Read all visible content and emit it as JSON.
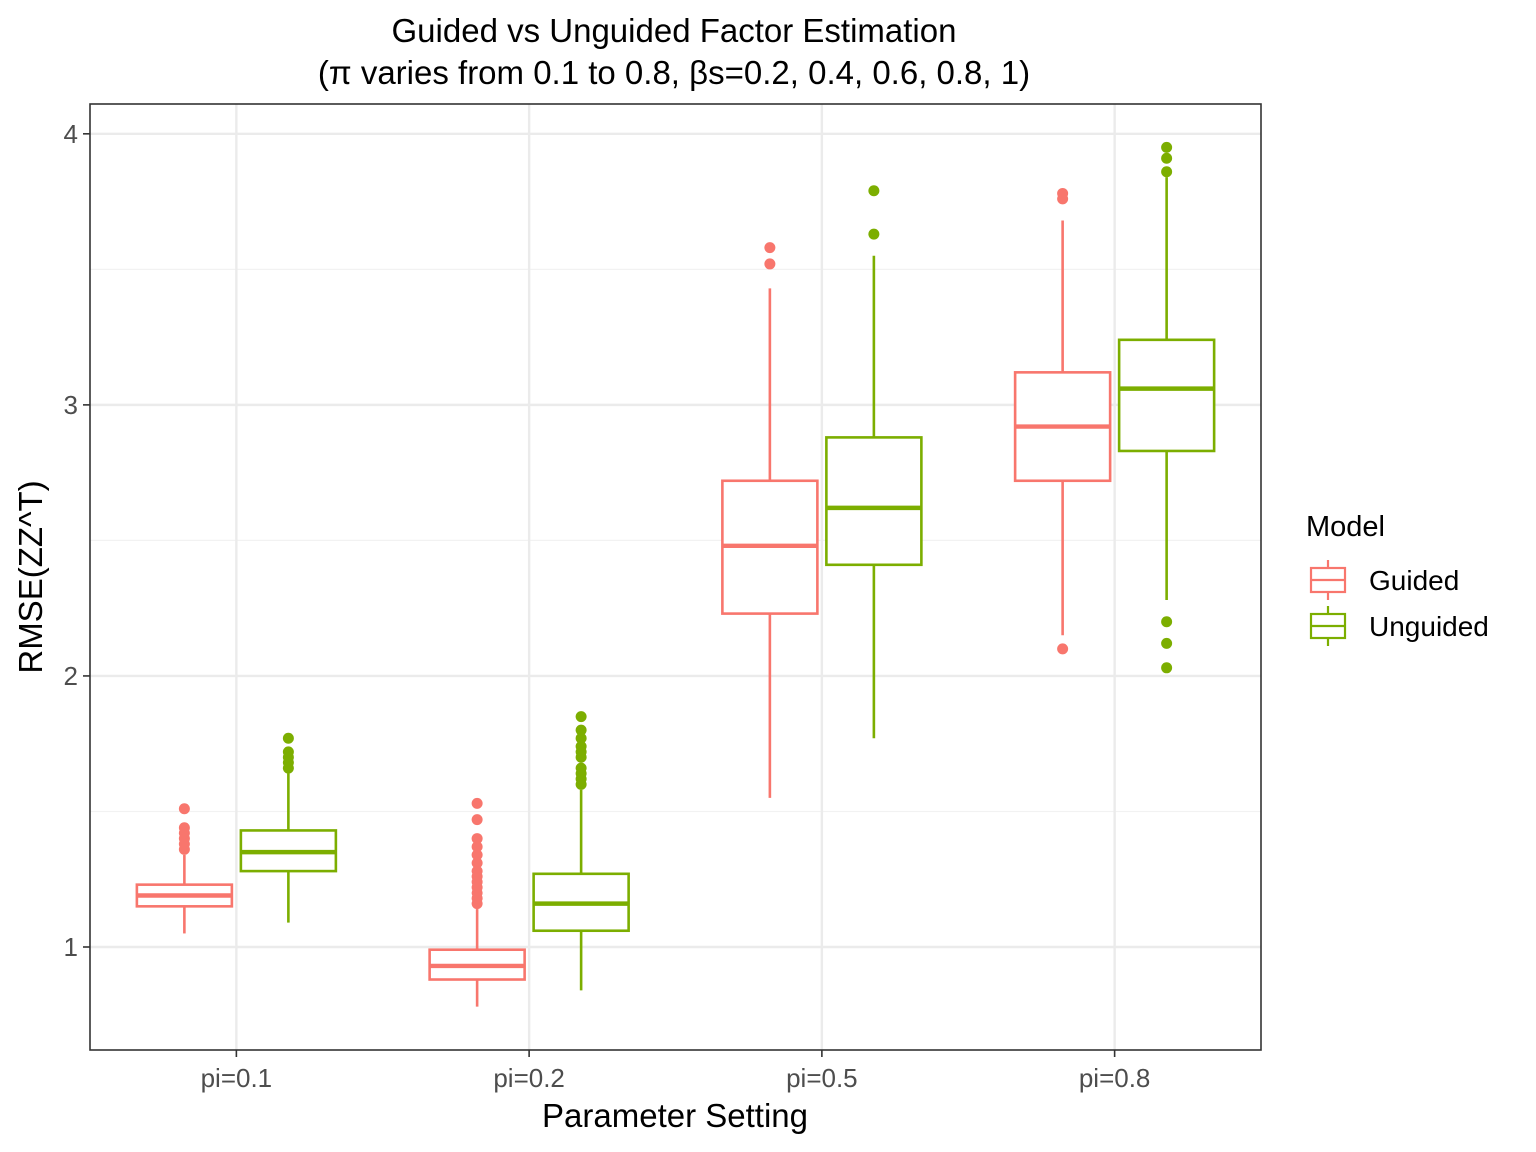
{
  "chart_data": {
    "type": "boxplot",
    "title": "Guided vs Unguided Factor Estimation",
    "subtitle": "(π varies from 0.1 to 0.8, βs=0.2, 0.4, 0.6, 0.8, 1)",
    "xlabel": "Parameter Setting",
    "ylabel": "RMSE(ZZ^T)",
    "ylim": [
      0.62,
      4.11
    ],
    "yticks": [
      1,
      2,
      3,
      4
    ],
    "grid": true,
    "legend": {
      "title": "Model",
      "position": "right"
    },
    "categories": [
      "pi=0.1",
      "pi=0.2",
      "pi=0.5",
      "pi=0.8"
    ],
    "series": [
      {
        "name": "Guided",
        "color": "#F8766D",
        "boxes": [
          {
            "whisker_low": 1.05,
            "q1": 1.15,
            "median": 1.19,
            "q3": 1.23,
            "whisker_high": 1.34,
            "outliers": [
              1.36,
              1.38,
              1.4,
              1.42,
              1.44,
              1.51
            ]
          },
          {
            "whisker_low": 0.78,
            "q1": 0.88,
            "median": 0.93,
            "q3": 0.99,
            "whisker_high": 1.14,
            "outliers": [
              1.16,
              1.18,
              1.2,
              1.22,
              1.24,
              1.26,
              1.28,
              1.31,
              1.34,
              1.37,
              1.4,
              1.47,
              1.53
            ]
          },
          {
            "whisker_low": 1.55,
            "q1": 2.23,
            "median": 2.48,
            "q3": 2.72,
            "whisker_high": 3.43,
            "outliers": [
              3.52,
              3.58
            ]
          },
          {
            "whisker_low": 2.15,
            "q1": 2.72,
            "median": 2.92,
            "q3": 3.12,
            "whisker_high": 3.68,
            "outliers": [
              2.1,
              3.76,
              3.78
            ]
          }
        ]
      },
      {
        "name": "Unguided",
        "color": "#7CAE00",
        "boxes": [
          {
            "whisker_low": 1.09,
            "q1": 1.28,
            "median": 1.35,
            "q3": 1.43,
            "whisker_high": 1.64,
            "outliers": [
              1.66,
              1.68,
              1.7,
              1.72,
              1.77
            ]
          },
          {
            "whisker_low": 0.84,
            "q1": 1.06,
            "median": 1.16,
            "q3": 1.27,
            "whisker_high": 1.58,
            "outliers": [
              1.6,
              1.62,
              1.64,
              1.66,
              1.7,
              1.72,
              1.74,
              1.77,
              1.8,
              1.85
            ]
          },
          {
            "whisker_low": 1.77,
            "q1": 2.41,
            "median": 2.62,
            "q3": 2.88,
            "whisker_high": 3.55,
            "outliers": [
              3.63,
              3.79
            ]
          },
          {
            "whisker_low": 2.28,
            "q1": 2.83,
            "median": 3.06,
            "q3": 3.24,
            "whisker_high": 3.84,
            "outliers": [
              2.03,
              2.12,
              2.2,
              3.86,
              3.91,
              3.95
            ]
          }
        ]
      }
    ]
  }
}
